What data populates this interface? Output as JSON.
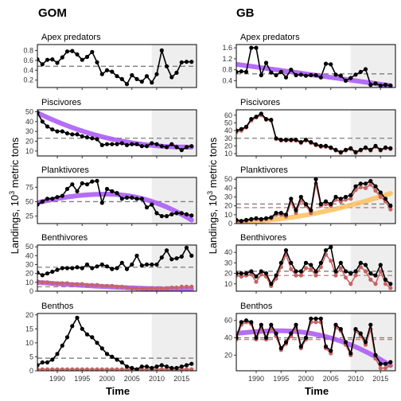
{
  "figure": {
    "columns": [
      "GOM",
      "GB"
    ],
    "ylabel_prefix": "Landings, 10",
    "ylabel_sup": "3",
    "ylabel_suffix": " metric tons",
    "xlabel": "Time",
    "x_ticks": [
      1990,
      1995,
      2000,
      2005,
      2010,
      2015
    ],
    "colors": {
      "landings_total": "#000000",
      "landings_commercial": "#c86464",
      "trend_decrease": "#a855f7",
      "trend_increase": "#fbbf5c",
      "mean_line": "#7f7f7f",
      "mean_line_commercial": "#b8807f",
      "shade": "#eeeeee"
    }
  },
  "chart_data": [
    {
      "type": "line",
      "column": "GOM",
      "title": "Apex predators",
      "xlim": [
        1986,
        2018
      ],
      "ylim": [
        0.05,
        0.92
      ],
      "yticks": [
        0.2,
        0.4,
        0.6,
        0.8
      ],
      "shade_from": 2009,
      "x_start": 1986,
      "series": [
        {
          "role": "total",
          "values": [
            0.62,
            0.52,
            0.61,
            0.62,
            0.55,
            0.66,
            0.78,
            0.79,
            0.72,
            0.61,
            0.67,
            0.77,
            0.56,
            0.32,
            0.4,
            0.37,
            0.28,
            0.22,
            0.12,
            0.3,
            0.22,
            0.17,
            0.28,
            0.15,
            0.32,
            0.8,
            0.48,
            0.26,
            0.35,
            0.56,
            0.57,
            0.57
          ]
        }
      ],
      "mean_lines": [
        0.48
      ]
    },
    {
      "type": "line",
      "column": "GOM",
      "title": "Piscivores",
      "xlim": [
        1986,
        2018
      ],
      "ylim": [
        5,
        52
      ],
      "yticks": [
        10,
        20,
        30,
        40,
        50
      ],
      "shade_from": 2009,
      "x_start": 1986,
      "series": [
        {
          "role": "total",
          "values": [
            49,
            40,
            35,
            32,
            30,
            30,
            28,
            27,
            27,
            25,
            24,
            23,
            22,
            16,
            17,
            17,
            17,
            18,
            16,
            17,
            17,
            15,
            15,
            18,
            17,
            15,
            14,
            17,
            14,
            11,
            14,
            15
          ]
        },
        {
          "role": "trend_decrease",
          "from": 1986,
          "to": 2017,
          "y_from": 49,
          "y_to": 14,
          "curve": 0.6
        }
      ],
      "mean_lines": [
        23
      ]
    },
    {
      "type": "line",
      "column": "GOM",
      "title": "Planktivores",
      "xlim": [
        1986,
        2018
      ],
      "ylim": [
        12,
        92
      ],
      "yticks": [
        25,
        50,
        75
      ],
      "shade_from": 2009,
      "x_start": 1986,
      "series": [
        {
          "role": "total",
          "values": [
            45,
            50,
            55,
            55,
            58,
            60,
            72,
            80,
            68,
            82,
            80,
            85,
            86,
            48,
            72,
            68,
            65,
            55,
            57,
            57,
            55,
            55,
            40,
            45,
            30,
            25,
            25,
            28,
            30,
            30,
            28,
            26
          ]
        },
        {
          "role": "trend_decrease",
          "from": 1986,
          "to": 2017,
          "y_from": 48,
          "y_to": 18,
          "peak": 2000,
          "y_peak": 63
        }
      ],
      "mean_lines": [
        50
      ]
    },
    {
      "type": "line",
      "column": "GOM",
      "title": "Benthivores",
      "xlim": [
        1986,
        2018
      ],
      "ylim": [
        0,
        52
      ],
      "yticks": [
        0,
        10,
        20,
        30,
        40,
        50
      ],
      "shade_from": 2009,
      "x_start": 1986,
      "series": [
        {
          "role": "total",
          "values": [
            21,
            18,
            20,
            22,
            24,
            26,
            26,
            26,
            27,
            26,
            30,
            26,
            28,
            30,
            28,
            25,
            26,
            32,
            25,
            30,
            40,
            29,
            30,
            30,
            30,
            38,
            46,
            36,
            37,
            39,
            49,
            40
          ]
        },
        {
          "role": "commercial",
          "values": [
            11,
            10,
            10,
            9,
            9,
            9,
            9,
            8,
            8,
            8,
            7,
            7,
            7,
            6,
            6,
            6,
            5,
            5,
            4,
            3,
            3,
            3,
            3,
            3,
            3,
            3,
            3,
            4,
            4,
            5,
            5,
            5
          ]
        },
        {
          "role": "trend_decrease",
          "from": 1986,
          "to": 2017,
          "y_from": 10,
          "y_to": 2,
          "curve": 0.3
        }
      ],
      "mean_lines": [
        27,
        5
      ]
    },
    {
      "type": "line",
      "column": "GOM",
      "title": "Benthos",
      "xlim": [
        1986,
        2018
      ],
      "ylim": [
        0,
        20.5
      ],
      "yticks": [
        0,
        5,
        10,
        15,
        20
      ],
      "shade_from": 2009,
      "x_start": 1986,
      "series": [
        {
          "role": "total",
          "values": [
            2,
            3,
            3,
            4,
            6,
            9,
            12,
            16,
            19,
            15,
            13,
            12,
            10,
            8,
            6,
            5,
            4,
            3,
            1.5,
            1,
            0.5,
            1.5,
            1.5,
            1,
            1.5,
            2,
            1.5,
            1,
            1,
            1.5,
            2,
            2.5
          ]
        },
        {
          "role": "commercial",
          "values": [
            0.5,
            0.5,
            0.5,
            0.5,
            0.5,
            0.5,
            0.5,
            0.5,
            0.5,
            0.5,
            0.5,
            0.5,
            0.5,
            0.5,
            0.5,
            0.5,
            0.5,
            0.5,
            0.5,
            0.5,
            0.5,
            0.5,
            0.5,
            0.5,
            0.5,
            0.5,
            0.5,
            0.5,
            0.5,
            0.5,
            0.5,
            0.5
          ]
        }
      ],
      "mean_lines": [
        4.5,
        0.5
      ]
    },
    {
      "type": "line",
      "column": "GB",
      "title": "Apex predators",
      "xlim": [
        1986,
        2018
      ],
      "ylim": [
        0.15,
        1.72
      ],
      "yticks": [
        0.4,
        0.8,
        1.2,
        1.6
      ],
      "shade_from": 2009,
      "x_start": 1986,
      "series": [
        {
          "role": "total",
          "values": [
            0.72,
            0.74,
            0.72,
            1.6,
            1.6,
            0.6,
            1.05,
            0.7,
            0.6,
            0.72,
            0.52,
            0.8,
            0.6,
            0.62,
            0.58,
            0.6,
            0.6,
            0.52,
            1.02,
            1.0,
            0.62,
            0.58,
            0.4,
            0.5,
            0.62,
            0.72,
            0.82,
            0.25,
            0.3,
            0.22,
            0.25,
            0.22
          ]
        },
        {
          "role": "trend_decrease",
          "from": 1986,
          "to": 2017,
          "y_from": 1.0,
          "y_to": 0.22,
          "curve": 0
        }
      ],
      "mean_lines": [
        0.65
      ]
    },
    {
      "type": "line",
      "column": "GB",
      "title": "Piscivores",
      "xlim": [
        1986,
        2018
      ],
      "ylim": [
        7,
        67
      ],
      "yticks": [
        10,
        20,
        30,
        40,
        50,
        60
      ],
      "shade_from": 2009,
      "x_start": 1986,
      "series": [
        {
          "role": "total",
          "values": [
            40,
            42,
            45,
            55,
            58,
            62,
            55,
            54,
            30,
            28,
            28,
            28,
            28,
            25,
            28,
            25,
            22,
            20,
            20,
            18,
            15,
            12,
            15,
            17,
            12,
            15,
            18,
            15,
            20,
            15,
            18,
            17
          ]
        },
        {
          "role": "commercial",
          "values": [
            38,
            40,
            44,
            53,
            57,
            60,
            54,
            53,
            29,
            27,
            27,
            27,
            27,
            24,
            27,
            24,
            21,
            19,
            19,
            17,
            14,
            11,
            14,
            16,
            11,
            14,
            17,
            14,
            19,
            14,
            17,
            16
          ]
        }
      ],
      "mean_lines": [
        30
      ]
    },
    {
      "type": "line",
      "column": "GB",
      "title": "Planktivores",
      "xlim": [
        1986,
        2018
      ],
      "ylim": [
        0,
        52
      ],
      "yticks": [
        0,
        10,
        20,
        30,
        40,
        50
      ],
      "shade_from": 2009,
      "x_start": 1986,
      "series": [
        {
          "role": "total",
          "values": [
            4,
            3,
            4,
            5,
            6,
            5,
            6,
            7,
            12,
            12,
            10,
            28,
            15,
            30,
            22,
            15,
            50,
            22,
            25,
            22,
            30,
            28,
            30,
            32,
            42,
            45,
            45,
            48,
            42,
            35,
            28,
            20
          ]
        },
        {
          "role": "commercial",
          "values": [
            2,
            2,
            3,
            4,
            5,
            4,
            5,
            6,
            10,
            10,
            8,
            24,
            12,
            26,
            20,
            12,
            45,
            20,
            22,
            20,
            27,
            25,
            27,
            28,
            38,
            41,
            40,
            44,
            37,
            30,
            25,
            16
          ]
        },
        {
          "role": "trend_increase",
          "from": 1986,
          "to": 2017,
          "y_from": 2,
          "y_to": 34,
          "curve": -0.4
        }
      ],
      "mean_lines": [
        22,
        18
      ]
    },
    {
      "type": "line",
      "column": "GB",
      "title": "Benthivores",
      "xlim": [
        1986,
        2018
      ],
      "ylim": [
        3,
        47
      ],
      "yticks": [
        10,
        20,
        30,
        40
      ],
      "shade_from": 2009,
      "x_start": 1986,
      "series": [
        {
          "role": "total",
          "values": [
            20,
            20,
            20,
            22,
            17,
            22,
            20,
            10,
            18,
            30,
            42,
            30,
            22,
            22,
            30,
            28,
            22,
            30,
            42,
            45,
            22,
            30,
            22,
            20,
            22,
            30,
            28,
            20,
            18,
            28,
            14,
            10
          ]
        },
        {
          "role": "commercial",
          "values": [
            18,
            17,
            18,
            19,
            12,
            19,
            17,
            8,
            15,
            26,
            38,
            24,
            18,
            18,
            25,
            24,
            18,
            26,
            38,
            32,
            18,
            25,
            16,
            10,
            18,
            26,
            22,
            14,
            10,
            22,
            10,
            6
          ]
        }
      ],
      "mean_lines": [
        22,
        18
      ]
    },
    {
      "type": "line",
      "column": "GB",
      "title": "Benthos",
      "xlim": [
        1986,
        2018
      ],
      "ylim": [
        2,
        68
      ],
      "yticks": [
        20,
        40,
        60
      ],
      "shade_from": 2009,
      "x_start": 1986,
      "series": [
        {
          "role": "total",
          "values": [
            40,
            58,
            60,
            58,
            40,
            55,
            40,
            55,
            45,
            28,
            35,
            45,
            55,
            30,
            40,
            62,
            62,
            62,
            30,
            25,
            55,
            50,
            35,
            22,
            50,
            45,
            35,
            55,
            20,
            10,
            10,
            12
          ]
        },
        {
          "role": "commercial",
          "values": [
            38,
            55,
            58,
            56,
            38,
            52,
            38,
            52,
            42,
            26,
            33,
            42,
            52,
            28,
            38,
            58,
            58,
            58,
            28,
            22,
            52,
            48,
            32,
            20,
            48,
            42,
            32,
            50,
            16,
            5,
            5,
            8
          ]
        },
        {
          "role": "trend_decrease",
          "from": 1986,
          "to": 2017,
          "y_from": 45,
          "y_to": 8,
          "peak": 1995,
          "y_peak": 48
        }
      ],
      "mean_lines": [
        40,
        38
      ]
    }
  ]
}
